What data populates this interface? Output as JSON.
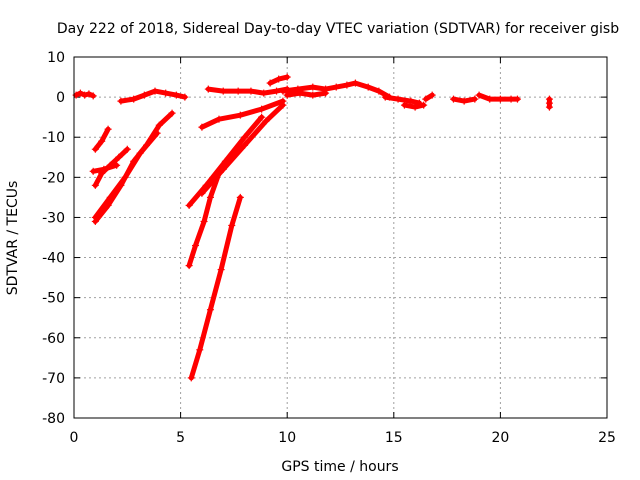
{
  "chart_data": {
    "type": "scatter",
    "title": "Day 222 of 2018, Sidereal Day-to-day VTEC variation (SDTVAR) for receiver gisb",
    "xlabel": "GPS time / hours",
    "ylabel": "SDTVAR / TECUs",
    "xlim": [
      0,
      25
    ],
    "ylim": [
      -80,
      10
    ],
    "xticks": [
      0,
      5,
      10,
      15,
      20,
      25
    ],
    "yticks": [
      -80,
      -70,
      -60,
      -50,
      -40,
      -30,
      -20,
      -10,
      0,
      10
    ],
    "xtick_labels": [
      "0",
      "5",
      "10",
      "15",
      "20",
      "25"
    ],
    "ytick_labels": [
      "-80",
      "-70",
      "-60",
      "-50",
      "-40",
      "-30",
      "-20",
      "-10",
      "0",
      "10"
    ],
    "grid": true,
    "marker": "+",
    "color": "#ff0000",
    "series": [
      {
        "name": "trace-1",
        "x": [
          0.1,
          0.3,
          0.5,
          0.7,
          0.9
        ],
        "y": [
          0.5,
          1.0,
          0.5,
          0.8,
          0.3
        ]
      },
      {
        "name": "trace-2",
        "x": [
          2.2,
          2.8,
          3.3,
          3.8,
          4.3,
          4.8,
          5.2
        ],
        "y": [
          -1.0,
          -0.5,
          0.5,
          1.5,
          1.0,
          0.5,
          0.0
        ]
      },
      {
        "name": "trace-3",
        "x": [
          6.3,
          7.0,
          7.7,
          8.3,
          8.9,
          9.5,
          10.0
        ],
        "y": [
          2.0,
          1.5,
          1.5,
          1.5,
          1.0,
          1.5,
          2.0
        ]
      },
      {
        "name": "trace-4",
        "x": [
          9.2,
          9.6,
          10.0
        ],
        "y": [
          3.5,
          4.5,
          5.0
        ]
      },
      {
        "name": "trace-5",
        "x": [
          9.8,
          10.5,
          11.2,
          11.8,
          12.3,
          12.8,
          13.2,
          13.8,
          14.3,
          14.8
        ],
        "y": [
          1.5,
          2.0,
          2.5,
          2.0,
          2.5,
          3.0,
          3.5,
          2.5,
          1.5,
          0.0
        ]
      },
      {
        "name": "trace-6",
        "x": [
          10.0,
          10.6,
          11.2,
          11.8
        ],
        "y": [
          0.5,
          1.0,
          0.5,
          1.0
        ]
      },
      {
        "name": "trace-7",
        "x": [
          14.6,
          15.2,
          15.8,
          16.2
        ],
        "y": [
          0.0,
          -0.5,
          -1.0,
          -1.5
        ]
      },
      {
        "name": "trace-8",
        "x": [
          15.5,
          16.0,
          16.4
        ],
        "y": [
          -2.0,
          -2.5,
          -2.0
        ]
      },
      {
        "name": "trace-9",
        "x": [
          16.5,
          16.8
        ],
        "y": [
          -0.5,
          0.5
        ]
      },
      {
        "name": "trace-10",
        "x": [
          17.8,
          18.3,
          18.8
        ],
        "y": [
          -0.5,
          -1.0,
          -0.5
        ]
      },
      {
        "name": "trace-11",
        "x": [
          19.0,
          19.5,
          20.0,
          20.5,
          20.8
        ],
        "y": [
          0.5,
          -0.5,
          -0.5,
          -0.5,
          -0.5
        ]
      },
      {
        "name": "trace-12",
        "x": [
          22.3,
          22.3,
          22.3
        ],
        "y": [
          -0.5,
          -1.5,
          -2.5
        ]
      },
      {
        "name": "trace-13",
        "x": [
          1.0,
          1.3,
          1.6
        ],
        "y": [
          -13,
          -11,
          -8
        ]
      },
      {
        "name": "trace-14",
        "x": [
          1.0,
          1.3,
          1.7,
          2.1,
          2.5
        ],
        "y": [
          -22,
          -19,
          -17,
          -15,
          -13
        ]
      },
      {
        "name": "trace-15",
        "x": [
          0.9,
          1.4,
          2.0
        ],
        "y": [
          -18.5,
          -18,
          -17
        ]
      },
      {
        "name": "trace-16",
        "x": [
          1.0,
          1.6,
          2.2,
          2.8,
          3.4,
          4.0,
          4.6
        ],
        "y": [
          -31,
          -27,
          -22,
          -16,
          -12,
          -7,
          -4
        ]
      },
      {
        "name": "trace-17",
        "x": [
          1.0,
          1.7,
          2.4,
          3.1,
          3.9
        ],
        "y": [
          -30,
          -25,
          -20,
          -14,
          -9
        ]
      },
      {
        "name": "trace-18",
        "x": [
          5.4,
          5.7,
          6.1,
          6.4,
          6.8
        ],
        "y": [
          -42,
          -37,
          -31,
          -25,
          -19
        ]
      },
      {
        "name": "trace-19",
        "x": [
          5.5,
          5.9,
          6.4,
          6.9,
          7.4,
          7.8
        ],
        "y": [
          -70,
          -63,
          -53,
          -43,
          -32,
          -25
        ]
      },
      {
        "name": "trace-20",
        "x": [
          5.4,
          6.2,
          7.1,
          8.0,
          8.8
        ],
        "y": [
          -27,
          -22,
          -16,
          -10,
          -5
        ]
      },
      {
        "name": "trace-21",
        "x": [
          6.0,
          7.0,
          8.0,
          9.0,
          9.8
        ],
        "y": [
          -24,
          -18,
          -12,
          -6,
          -2
        ]
      },
      {
        "name": "trace-22",
        "x": [
          6.0,
          6.8,
          7.8,
          8.8,
          9.8
        ],
        "y": [
          -7.5,
          -5.5,
          -4.5,
          -3.0,
          -1.0
        ]
      }
    ]
  }
}
